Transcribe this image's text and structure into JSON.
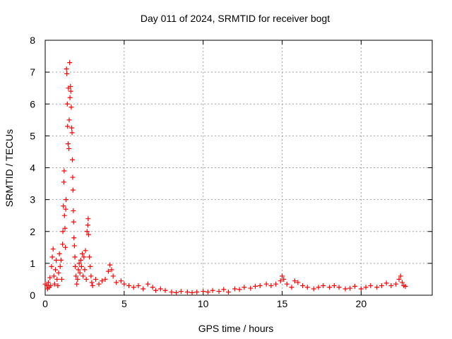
{
  "chart_data": {
    "type": "scatter",
    "title": "Day 011 of 2024, SRMTID for receiver bogt",
    "xlabel": "GPS time / hours",
    "ylabel": "SRMTID / TECUs",
    "xlim": [
      0,
      24.5
    ],
    "ylim": [
      0,
      8
    ],
    "xticks": [
      0,
      5,
      10,
      15,
      20
    ],
    "yticks": [
      0,
      1,
      2,
      3,
      4,
      5,
      6,
      7,
      8
    ],
    "x_tick_labels": [
      "0",
      "5",
      "10",
      "15",
      "20"
    ],
    "y_tick_labels": [
      "0",
      "1",
      "2",
      "3",
      "4",
      "5",
      "6",
      "7",
      "8"
    ],
    "grid": true,
    "marker": "+",
    "series": [
      {
        "name": "SRMTID",
        "color": "#ff0000",
        "points": [
          [
            0.0,
            0.35
          ],
          [
            0.1,
            0.3
          ],
          [
            0.15,
            0.2
          ],
          [
            0.2,
            0.4
          ],
          [
            0.25,
            0.25
          ],
          [
            0.3,
            0.55
          ],
          [
            0.35,
            0.3
          ],
          [
            0.4,
            0.9
          ],
          [
            0.45,
            1.2
          ],
          [
            0.5,
            1.45
          ],
          [
            0.55,
            0.6
          ],
          [
            0.6,
            0.35
          ],
          [
            0.65,
            0.8
          ],
          [
            0.7,
            1.1
          ],
          [
            0.75,
            0.5
          ],
          [
            0.8,
            0.3
          ],
          [
            0.85,
            0.7
          ],
          [
            0.9,
            1.3
          ],
          [
            0.95,
            0.9
          ],
          [
            1.0,
            1.1
          ],
          [
            1.05,
            0.5
          ],
          [
            1.1,
            1.6
          ],
          [
            1.12,
            2.0
          ],
          [
            1.15,
            2.8
          ],
          [
            1.18,
            3.55
          ],
          [
            1.2,
            3.9
          ],
          [
            1.22,
            2.5
          ],
          [
            1.25,
            2.1
          ],
          [
            1.28,
            1.5
          ],
          [
            1.3,
            2.7
          ],
          [
            1.32,
            3.0
          ],
          [
            1.35,
            7.1
          ],
          [
            1.37,
            6.95
          ],
          [
            1.4,
            6.0
          ],
          [
            1.42,
            5.3
          ],
          [
            1.45,
            4.75
          ],
          [
            1.47,
            6.5
          ],
          [
            1.5,
            4.6
          ],
          [
            1.52,
            5.5
          ],
          [
            1.55,
            7.3
          ],
          [
            1.57,
            6.2
          ],
          [
            1.6,
            6.55
          ],
          [
            1.62,
            6.4
          ],
          [
            1.65,
            5.9
          ],
          [
            1.68,
            5.25
          ],
          [
            1.7,
            5.1
          ],
          [
            1.72,
            4.25
          ],
          [
            1.74,
            3.7
          ],
          [
            1.76,
            3.3
          ],
          [
            1.78,
            2.65
          ],
          [
            1.8,
            2.3
          ],
          [
            1.82,
            1.8
          ],
          [
            1.85,
            1.55
          ],
          [
            1.88,
            1.2
          ],
          [
            1.9,
            0.9
          ],
          [
            1.95,
            0.6
          ],
          [
            2.0,
            0.35
          ],
          [
            2.05,
            0.5
          ],
          [
            2.1,
            0.8
          ],
          [
            2.15,
            1.0
          ],
          [
            2.2,
            0.7
          ],
          [
            2.25,
            1.1
          ],
          [
            2.3,
            0.9
          ],
          [
            2.35,
            1.3
          ],
          [
            2.4,
            0.6
          ],
          [
            2.45,
            1.2
          ],
          [
            2.5,
            0.8
          ],
          [
            2.55,
            1.4
          ],
          [
            2.6,
            0.5
          ],
          [
            2.65,
            2.0
          ],
          [
            2.7,
            2.2
          ],
          [
            2.72,
            2.4
          ],
          [
            2.75,
            1.9
          ],
          [
            2.8,
            1.2
          ],
          [
            2.85,
            0.9
          ],
          [
            2.9,
            0.6
          ],
          [
            2.95,
            0.4
          ],
          [
            3.0,
            0.3
          ],
          [
            3.2,
            0.5
          ],
          [
            3.4,
            0.35
          ],
          [
            3.6,
            0.45
          ],
          [
            3.8,
            0.5
          ],
          [
            4.0,
            0.75
          ],
          [
            4.1,
            0.95
          ],
          [
            4.2,
            0.8
          ],
          [
            4.3,
            0.6
          ],
          [
            4.5,
            0.4
          ],
          [
            4.8,
            0.45
          ],
          [
            5.0,
            0.35
          ],
          [
            5.3,
            0.3
          ],
          [
            5.6,
            0.25
          ],
          [
            5.9,
            0.3
          ],
          [
            6.2,
            0.2
          ],
          [
            6.5,
            0.35
          ],
          [
            6.8,
            0.25
          ],
          [
            7.0,
            0.15
          ],
          [
            7.3,
            0.2
          ],
          [
            7.6,
            0.15
          ],
          [
            8.0,
            0.1
          ],
          [
            8.3,
            0.08
          ],
          [
            8.6,
            0.12
          ],
          [
            9.0,
            0.1
          ],
          [
            9.3,
            0.08
          ],
          [
            9.6,
            0.1
          ],
          [
            10.0,
            0.12
          ],
          [
            10.3,
            0.1
          ],
          [
            10.6,
            0.15
          ],
          [
            11.0,
            0.12
          ],
          [
            11.3,
            0.18
          ],
          [
            11.6,
            0.1
          ],
          [
            12.0,
            0.2
          ],
          [
            12.3,
            0.18
          ],
          [
            12.6,
            0.25
          ],
          [
            13.0,
            0.22
          ],
          [
            13.3,
            0.28
          ],
          [
            13.6,
            0.3
          ],
          [
            14.0,
            0.35
          ],
          [
            14.3,
            0.3
          ],
          [
            14.6,
            0.35
          ],
          [
            14.9,
            0.45
          ],
          [
            15.0,
            0.6
          ],
          [
            15.1,
            0.5
          ],
          [
            15.3,
            0.35
          ],
          [
            15.6,
            0.25
          ],
          [
            15.8,
            0.45
          ],
          [
            16.0,
            0.4
          ],
          [
            16.3,
            0.3
          ],
          [
            16.6,
            0.25
          ],
          [
            17.0,
            0.2
          ],
          [
            17.3,
            0.25
          ],
          [
            17.6,
            0.3
          ],
          [
            18.0,
            0.25
          ],
          [
            18.3,
            0.3
          ],
          [
            18.6,
            0.25
          ],
          [
            19.0,
            0.2
          ],
          [
            19.3,
            0.22
          ],
          [
            19.6,
            0.28
          ],
          [
            20.0,
            0.2
          ],
          [
            20.3,
            0.25
          ],
          [
            20.6,
            0.3
          ],
          [
            21.0,
            0.25
          ],
          [
            21.3,
            0.3
          ],
          [
            21.6,
            0.38
          ],
          [
            21.9,
            0.3
          ],
          [
            22.2,
            0.35
          ],
          [
            22.4,
            0.5
          ],
          [
            22.5,
            0.6
          ],
          [
            22.6,
            0.4
          ],
          [
            22.7,
            0.3
          ],
          [
            22.8,
            0.28
          ]
        ]
      }
    ]
  }
}
